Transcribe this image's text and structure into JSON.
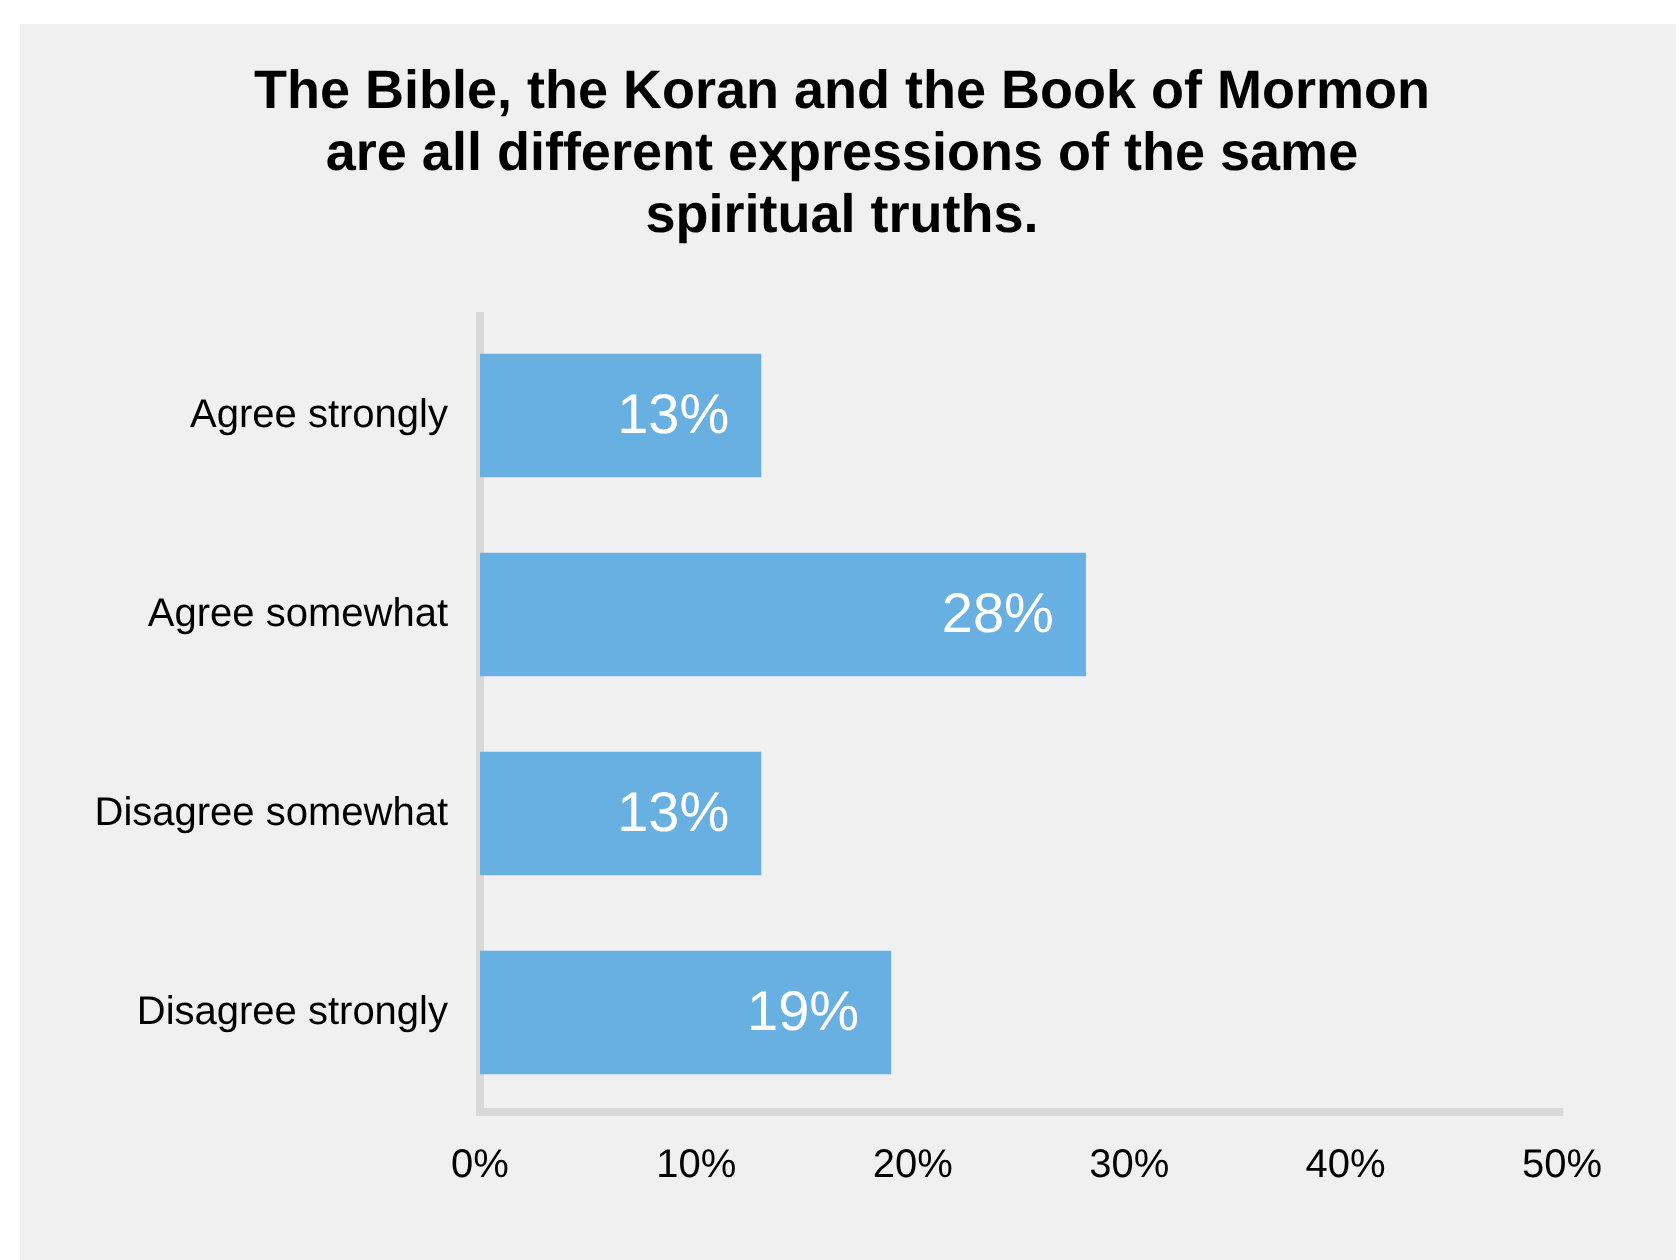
{
  "chart_data": {
    "type": "bar",
    "orientation": "horizontal",
    "title": "The Bible, the Koran and the Book of Mormon are all different expressions of the same spiritual truths.",
    "categories": [
      "Agree strongly",
      "Agree somewhat",
      "Disagree somewhat",
      "Disagree strongly"
    ],
    "values": [
      13,
      28,
      13,
      19
    ],
    "value_labels": [
      "13%",
      "28%",
      "13%",
      "19%"
    ],
    "color": "#67b0e1",
    "xlim": [
      0,
      50
    ],
    "xticks": [
      {
        "value": 0,
        "label": "0%"
      },
      {
        "value": 10,
        "label": "10%"
      },
      {
        "value": 20,
        "label": "20%"
      },
      {
        "value": 30,
        "label": "30%"
      },
      {
        "value": 40,
        "label": "40%"
      },
      {
        "value": 50,
        "label": "50%"
      }
    ],
    "grid": false,
    "legend": false
  }
}
